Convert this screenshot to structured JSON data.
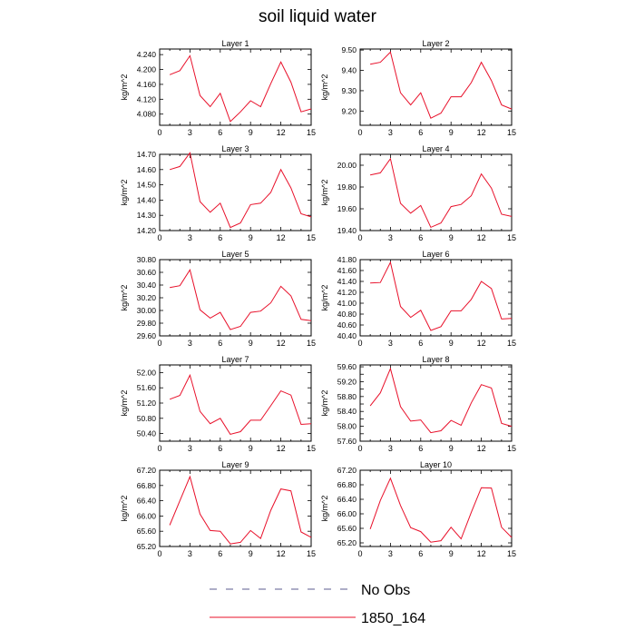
{
  "figure": {
    "title": "soil liquid water",
    "ylabel": "kg/m^2"
  },
  "legend": {
    "entries": [
      {
        "name": "No Obs",
        "color": "#5b5b8f",
        "style": "dashed"
      },
      {
        "name": "1850_164",
        "color": "#e8102a",
        "style": "solid"
      }
    ]
  },
  "chart_data": [
    {
      "type": "line",
      "title": "Layer 1",
      "ylabel": "kg/m^2",
      "xlim": [
        0,
        15
      ],
      "ylim": [
        4.05,
        4.255
      ],
      "xticks": [
        0,
        3,
        6,
        9,
        12,
        15
      ],
      "yticks": [
        4.08,
        4.12,
        4.16,
        4.2,
        4.24
      ],
      "yticklabels": [
        "4.080",
        "4.120",
        "4.160",
        "4.200",
        "4.240"
      ],
      "x": [
        1,
        2,
        3,
        4,
        5,
        6,
        7,
        8,
        9,
        10,
        11,
        12,
        13,
        14,
        15
      ],
      "series": [
        {
          "name": "1850_164",
          "color": "#e8102a",
          "values": [
            4.186,
            4.197,
            4.237,
            4.13,
            4.1,
            4.136,
            4.06,
            4.086,
            4.116,
            4.1,
            4.162,
            4.22,
            4.166,
            4.086,
            4.094
          ]
        }
      ]
    },
    {
      "type": "line",
      "title": "Layer 2",
      "ylabel": "kg/m^2",
      "xlim": [
        0,
        15
      ],
      "ylim": [
        9.13,
        9.505
      ],
      "xticks": [
        0,
        3,
        6,
        9,
        12,
        15
      ],
      "yticks": [
        9.2,
        9.3,
        9.4,
        9.5
      ],
      "yticklabels": [
        "9.20",
        "9.30",
        "9.40",
        "9.50"
      ],
      "x": [
        1,
        2,
        3,
        4,
        5,
        6,
        7,
        8,
        9,
        10,
        11,
        12,
        13,
        14,
        15
      ],
      "series": [
        {
          "name": "1850_164",
          "color": "#e8102a",
          "values": [
            9.43,
            9.44,
            9.49,
            9.29,
            9.23,
            9.29,
            9.165,
            9.19,
            9.27,
            9.27,
            9.34,
            9.44,
            9.35,
            9.23,
            9.21
          ]
        }
      ]
    },
    {
      "type": "line",
      "title": "Layer 3",
      "ylabel": "kg/m^2",
      "xlim": [
        0,
        15
      ],
      "ylim": [
        14.2,
        14.7
      ],
      "xticks": [
        0,
        3,
        6,
        9,
        12,
        15
      ],
      "yticks": [
        14.2,
        14.3,
        14.4,
        14.5,
        14.6,
        14.7
      ],
      "yticklabels": [
        "14.20",
        "14.30",
        "14.40",
        "14.50",
        "14.60",
        "14.70"
      ],
      "x": [
        1,
        2,
        3,
        4,
        5,
        6,
        7,
        8,
        9,
        10,
        11,
        12,
        13,
        14,
        15
      ],
      "series": [
        {
          "name": "1850_164",
          "color": "#e8102a",
          "values": [
            14.6,
            14.62,
            14.71,
            14.39,
            14.32,
            14.38,
            14.22,
            14.25,
            14.37,
            14.38,
            14.45,
            14.6,
            14.48,
            14.31,
            14.29
          ]
        }
      ]
    },
    {
      "type": "line",
      "title": "Layer 4",
      "ylabel": "kg/m^2",
      "xlim": [
        0,
        15
      ],
      "ylim": [
        19.4,
        20.1
      ],
      "xticks": [
        0,
        3,
        6,
        9,
        12,
        15
      ],
      "yticks": [
        19.4,
        19.6,
        19.8,
        20.0
      ],
      "yticklabels": [
        "19.40",
        "19.60",
        "19.80",
        "20.00"
      ],
      "x": [
        1,
        2,
        3,
        4,
        5,
        6,
        7,
        8,
        9,
        10,
        11,
        12,
        13,
        14,
        15
      ],
      "series": [
        {
          "name": "1850_164",
          "color": "#e8102a",
          "values": [
            19.91,
            19.93,
            20.06,
            19.65,
            19.56,
            19.63,
            19.43,
            19.47,
            19.62,
            19.64,
            19.72,
            19.92,
            19.79,
            19.55,
            19.53
          ]
        }
      ]
    },
    {
      "type": "line",
      "title": "Layer 5",
      "ylabel": "kg/m^2",
      "xlim": [
        0,
        15
      ],
      "ylim": [
        29.6,
        30.8
      ],
      "xticks": [
        0,
        3,
        6,
        9,
        12,
        15
      ],
      "yticks": [
        29.6,
        29.8,
        30.0,
        30.2,
        30.4,
        30.6,
        30.8
      ],
      "yticklabels": [
        "29.60",
        "29.80",
        "30.00",
        "30.20",
        "30.40",
        "30.60",
        "30.80"
      ],
      "x": [
        1,
        2,
        3,
        4,
        5,
        6,
        7,
        8,
        9,
        10,
        11,
        12,
        13,
        14,
        15
      ],
      "series": [
        {
          "name": "1850_164",
          "color": "#e8102a",
          "values": [
            30.36,
            30.39,
            30.64,
            30.01,
            29.88,
            29.97,
            29.7,
            29.75,
            29.97,
            29.99,
            30.12,
            30.38,
            30.23,
            29.86,
            29.84
          ]
        }
      ]
    },
    {
      "type": "line",
      "title": "Layer 6",
      "ylabel": "kg/m^2",
      "xlim": [
        0,
        15
      ],
      "ylim": [
        40.4,
        41.8
      ],
      "xticks": [
        0,
        3,
        6,
        9,
        12,
        15
      ],
      "yticks": [
        40.4,
        40.6,
        40.8,
        41.0,
        41.2,
        41.4,
        41.6,
        41.8
      ],
      "yticklabels": [
        "40.40",
        "40.60",
        "40.80",
        "41.00",
        "41.20",
        "41.40",
        "41.60",
        "41.80"
      ],
      "x": [
        1,
        2,
        3,
        4,
        5,
        6,
        7,
        8,
        9,
        10,
        11,
        12,
        13,
        14,
        15
      ],
      "series": [
        {
          "name": "1850_164",
          "color": "#e8102a",
          "values": [
            41.37,
            41.38,
            41.75,
            40.94,
            40.74,
            40.87,
            40.5,
            40.57,
            40.86,
            40.86,
            41.07,
            41.4,
            41.27,
            40.71,
            40.72
          ]
        }
      ]
    },
    {
      "type": "line",
      "title": "Layer 7",
      "ylabel": "kg/m^2",
      "xlim": [
        0,
        15
      ],
      "ylim": [
        50.2,
        52.2
      ],
      "xticks": [
        0,
        3,
        6,
        9,
        12,
        15
      ],
      "yticks": [
        50.4,
        50.8,
        51.2,
        51.6,
        52.0
      ],
      "yticklabels": [
        "50.40",
        "50.80",
        "51.20",
        "51.60",
        "52.00"
      ],
      "x": [
        1,
        2,
        3,
        4,
        5,
        6,
        7,
        8,
        9,
        10,
        11,
        12,
        13,
        14,
        15
      ],
      "series": [
        {
          "name": "1850_164",
          "color": "#e8102a",
          "values": [
            51.3,
            51.4,
            51.93,
            50.98,
            50.66,
            50.8,
            50.38,
            50.45,
            50.75,
            50.75,
            51.13,
            51.52,
            51.41,
            50.64,
            50.66
          ]
        }
      ]
    },
    {
      "type": "line",
      "title": "Layer 8",
      "ylabel": "kg/m^2",
      "xlim": [
        0,
        15
      ],
      "ylim": [
        57.6,
        59.65
      ],
      "xticks": [
        0,
        3,
        6,
        9,
        12,
        15
      ],
      "yticks": [
        57.6,
        57.8,
        58.0,
        58.2,
        58.4,
        58.6,
        58.8,
        59.0,
        59.2,
        59.4,
        59.6
      ],
      "yticklabels": [
        "57.60",
        "",
        "58.00",
        "",
        "58.40",
        "",
        "58.80",
        "",
        "59.20",
        "",
        "59.60"
      ],
      "x": [
        1,
        2,
        3,
        4,
        5,
        6,
        7,
        8,
        9,
        10,
        11,
        12,
        13,
        14,
        15
      ],
      "series": [
        {
          "name": "1850_164",
          "color": "#e8102a",
          "values": [
            58.55,
            58.9,
            59.55,
            58.53,
            58.14,
            58.17,
            57.83,
            57.88,
            58.16,
            58.03,
            58.63,
            59.12,
            59.03,
            58.08,
            58.0
          ]
        }
      ]
    },
    {
      "type": "line",
      "title": "Layer 9",
      "ylabel": "kg/m^2",
      "xlim": [
        0,
        15
      ],
      "ylim": [
        65.2,
        67.2
      ],
      "xticks": [
        0,
        3,
        6,
        9,
        12,
        15
      ],
      "yticks": [
        65.2,
        65.6,
        66.0,
        66.4,
        66.8,
        67.2
      ],
      "yticklabels": [
        "65.20",
        "65.60",
        "66.00",
        "66.40",
        "66.80",
        "67.20"
      ],
      "x": [
        1,
        2,
        3,
        4,
        5,
        6,
        7,
        8,
        9,
        10,
        11,
        12,
        13,
        14,
        15
      ],
      "series": [
        {
          "name": "1850_164",
          "color": "#e8102a",
          "values": [
            65.76,
            66.4,
            67.03,
            66.05,
            65.62,
            65.6,
            65.27,
            65.31,
            65.62,
            65.41,
            66.15,
            66.71,
            66.66,
            65.58,
            65.44
          ]
        }
      ]
    },
    {
      "type": "line",
      "title": "Layer 10",
      "ylabel": "kg/m^2",
      "xlim": [
        0,
        15
      ],
      "ylim": [
        65.1,
        67.2
      ],
      "xticks": [
        0,
        3,
        6,
        9,
        12,
        15
      ],
      "yticks": [
        65.2,
        65.6,
        66.0,
        66.4,
        66.8,
        67.2
      ],
      "yticklabels": [
        "65.20",
        "65.60",
        "66.00",
        "66.40",
        "66.80",
        "67.20"
      ],
      "x": [
        1,
        2,
        3,
        4,
        5,
        6,
        7,
        8,
        9,
        10,
        11,
        12,
        13,
        14,
        15
      ],
      "series": [
        {
          "name": "1850_164",
          "color": "#e8102a",
          "values": [
            65.58,
            66.37,
            66.98,
            66.23,
            65.62,
            65.51,
            65.22,
            65.26,
            65.63,
            65.31,
            66.04,
            66.72,
            66.71,
            65.63,
            65.35
          ]
        }
      ]
    }
  ]
}
